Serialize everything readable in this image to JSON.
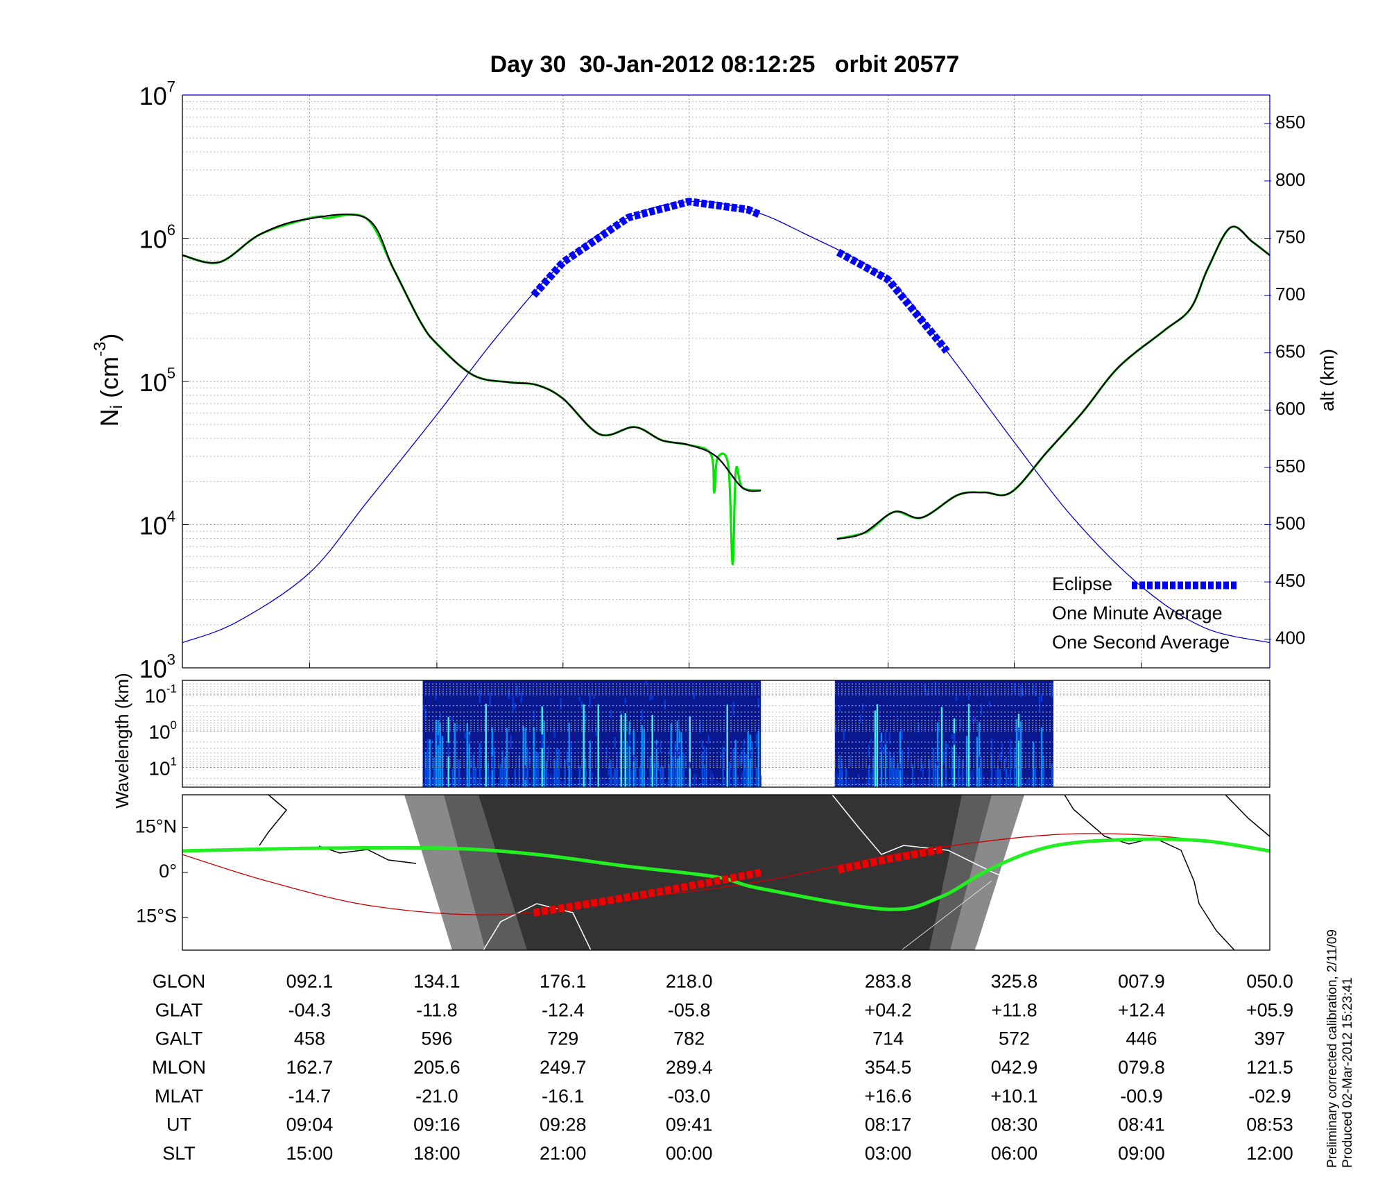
{
  "title": "Day 30  30-Jan-2012 08:12:25   orbit 20577",
  "chart_data": [
    {
      "type": "line",
      "ylabel": {
        "main": "N",
        "sub": "i",
        "unit": "(cm",
        "exp": "-3",
        "close": ")"
      },
      "y2label": "alt (km)",
      "xlim": [
        0,
        100
      ],
      "xticks": [
        11.7,
        23.4,
        35.0,
        46.6,
        64.9,
        76.5,
        88.2,
        100
      ],
      "ylim": [
        1000,
        10000000
      ],
      "yscale": "log",
      "yticks": [
        {
          "value": 1000,
          "label": "10",
          "exp": "3"
        },
        {
          "value": 10000,
          "label": "10",
          "exp": "4"
        },
        {
          "value": 100000,
          "label": "10",
          "exp": "5"
        },
        {
          "value": 1000000,
          "label": "10",
          "exp": "6"
        },
        {
          "value": 10000000,
          "label": "10",
          "exp": "7"
        }
      ],
      "y2lim": [
        375,
        875
      ],
      "y2ticks": [
        400,
        450,
        500,
        550,
        600,
        650,
        700,
        750,
        800,
        850
      ],
      "grid": true,
      "legend": "lower right",
      "series": [
        {
          "name": "One Minute Average",
          "color": "#000000",
          "x": [
            0,
            3.4,
            7.1,
            11.2,
            16.9,
            19.4,
            21.9,
            23.5,
            26.8,
            30.1,
            32.6,
            35.0,
            38.4,
            41.6,
            44.1,
            46.6,
            49.1,
            51.5,
            53.2,
            57,
            60.2,
            62.6,
            65.5,
            68.0,
            71.3,
            73.7,
            76.2,
            79.5,
            82.8,
            86.1,
            90.2,
            92.7,
            94.3,
            96.4,
            98.4,
            100
          ],
          "values": [
            760000,
            680000,
            1060000,
            1350000,
            1380000,
            614000,
            260000,
            180000,
            110000,
            98600,
            94400,
            75900,
            42700,
            48000,
            38800,
            36000,
            29900,
            18100,
            17300,
            null,
            7940,
            8700,
            12300,
            11200,
            16100,
            16800,
            16800,
            32100,
            61200,
            126000,
            224000,
            322000,
            614000,
            1190000,
            944000,
            760000
          ]
        },
        {
          "name": "One Second Average",
          "color": "#00e600",
          "x": [
            0,
            3.4,
            7.1,
            11.2,
            12.8,
            13.2,
            16.9,
            19.4,
            21.9,
            23.5,
            26.8,
            30.1,
            32.6,
            35.0,
            38.4,
            41.6,
            44.1,
            46.6,
            48.6,
            48.9,
            49.2,
            50.2,
            50.6,
            50.9,
            51.5,
            53.2,
            57,
            60.2,
            62.6,
            63.5,
            65.5,
            68.0,
            71.3,
            73.7,
            76.2,
            79.5,
            82.8,
            86.1,
            90.2,
            92.7,
            94.3,
            96.4,
            98.4,
            100
          ],
          "values": [
            760000,
            680000,
            1060000,
            1350000,
            1420000,
            1380000,
            1380000,
            614000,
            260000,
            180000,
            110000,
            98600,
            94400,
            75900,
            42700,
            48000,
            38800,
            36000,
            31000,
            16800,
            29000,
            26000,
            5300,
            24000,
            18100,
            17300,
            null,
            7940,
            8700,
            9500,
            12300,
            11200,
            16100,
            16800,
            16800,
            32100,
            61200,
            126000,
            224000,
            322000,
            614000,
            1190000,
            944000,
            760000
          ]
        },
        {
          "axis": "y2",
          "color": "#0000cc",
          "x": [
            0,
            5,
            11.7,
            17,
            23.4,
            29,
            35.0,
            41,
            46.6,
            52,
            57,
            64.9,
            70,
            76.5,
            82,
            88.2,
            94,
            100
          ],
          "values": [
            397,
            415,
            458,
            520,
            596,
            665,
            729,
            768,
            782,
            775,
            755,
            714,
            655,
            572,
            505,
            446,
            410,
            397
          ]
        }
      ],
      "eclipse": {
        "name": "Eclipse",
        "color": "#0000ff",
        "ranges": [
          [
            32.3,
            53.2
          ],
          [
            60.3,
            70.5
          ]
        ]
      }
    },
    {
      "type": "spectrogram",
      "ylabel": "Wavelength (km)",
      "yscale": "log",
      "ylim": [
        35,
        0.04
      ],
      "yticks": [
        {
          "value": 0.1,
          "label": "10",
          "exp": "-1"
        },
        {
          "value": 1,
          "label": "10",
          "exp": "0"
        },
        {
          "value": 10,
          "label": "10",
          "exp": "1"
        }
      ],
      "xlim": [
        0,
        100
      ],
      "ranges": [
        [
          22.1,
          53.2
        ],
        [
          60.0,
          80.1
        ]
      ]
    },
    {
      "type": "map",
      "xlim": [
        0,
        100
      ],
      "ylim": [
        -26,
        26
      ],
      "yticks": [
        {
          "value": 15,
          "label": "15°N"
        },
        {
          "value": 0,
          "label": "0°"
        },
        {
          "value": -15,
          "label": "15°S"
        }
      ],
      "track": {
        "color": "#22ee22",
        "x": [
          0,
          12.0,
          24.4,
          32.6,
          40.8,
          49.1,
          53.2,
          64.7,
          69.6,
          73.7,
          77.8,
          81.9,
          88.5,
          94.2,
          100
        ],
        "values": [
          7.2,
          8.1,
          8.1,
          6,
          2.1,
          -1.5,
          -5.4,
          -12.3,
          -8.4,
          0,
          6.6,
          9.9,
          11.1,
          10.5,
          7.2
        ]
      },
      "magnetic_equator": {
        "color": "#cc0000",
        "x": [
          0,
          7.9,
          17.8,
          29.3,
          40.8,
          53.2,
          65.5,
          77.8,
          86.1,
          94.3,
          100
        ],
        "values": [
          6,
          -3,
          -11.4,
          -14.1,
          -9,
          -3,
          6,
          12,
          12.9,
          10.5,
          6.9
        ]
      },
      "eclipse_track": {
        "color": "#ee0000",
        "segments": [
          {
            "x": [
              32.3,
              43,
              53.2
            ],
            "values": [
              -13.5,
              -7,
              0
            ]
          },
          {
            "x": [
              60.3,
              65,
              70.0
            ],
            "values": [
              0.9,
              4.5,
              7.8
            ]
          }
        ]
      }
    }
  ],
  "table": {
    "rows": [
      {
        "label": "GLON",
        "values": [
          "092.1",
          "134.1",
          "176.1",
          "218.0",
          "283.8",
          "325.8",
          "007.9",
          "050.0"
        ]
      },
      {
        "label": "GLAT",
        "values": [
          "-04.3",
          "-11.8",
          "-12.4",
          "-05.8",
          "+04.2",
          "+11.8",
          "+12.4",
          "+05.9"
        ]
      },
      {
        "label": "GALT",
        "values": [
          "458",
          "596",
          "729",
          "782",
          "714",
          "572",
          "446",
          "397"
        ]
      },
      {
        "label": "MLON",
        "values": [
          "162.7",
          "205.6",
          "249.7",
          "289.4",
          "354.5",
          "042.9",
          "079.8",
          "121.5"
        ]
      },
      {
        "label": "MLAT",
        "values": [
          "-14.7",
          "-21.0",
          "-16.1",
          "-03.0",
          "+16.6",
          "+10.1",
          "-00.9",
          "-02.9"
        ]
      },
      {
        "label": "UT",
        "values": [
          "09:04",
          "09:16",
          "09:28",
          "09:41",
          "08:17",
          "08:30",
          "08:41",
          "08:53"
        ]
      },
      {
        "label": "SLT",
        "values": [
          "15:00",
          "18:00",
          "21:00",
          "00:00",
          "03:00",
          "06:00",
          "09:00",
          "12:00"
        ]
      }
    ]
  },
  "notes": [
    "Preliminary corrected calibration, 2/11/09",
    "Produced 02-Mar-2012 15:23:41"
  ]
}
